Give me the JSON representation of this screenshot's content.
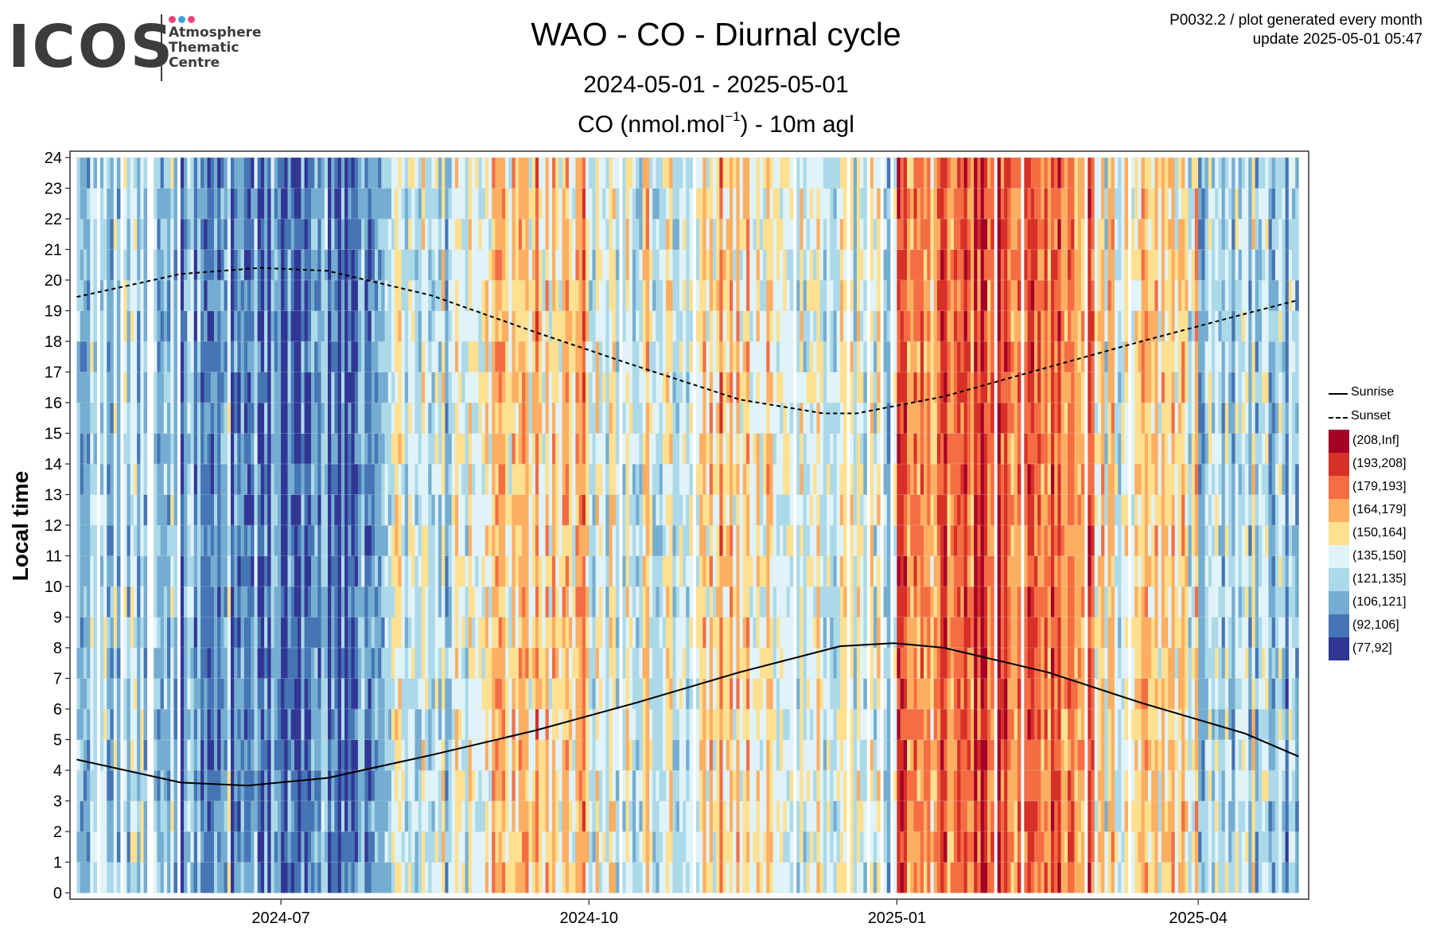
{
  "header": {
    "logo_text": "ICOS",
    "logo_subtitle": [
      "Atmosphere",
      "Thematic",
      "Centre"
    ],
    "logo_dot_colors": [
      "#e8457f",
      "#3aa2e3",
      "#e8457f"
    ],
    "title": "WAO - CO - Diurnal cycle",
    "subtitle": "2024-05-01 - 2025-05-01",
    "plot_subtitle_pre": "CO (nmol.mol",
    "plot_subtitle_exp": "−1",
    "plot_subtitle_post": ") - 10m agl",
    "meta_line1": "P0032.2 / plot generated every month",
    "meta_line2": "update  2025-05-01 05:47"
  },
  "chart_data": {
    "type": "heatmap",
    "ylabel": "Local time",
    "xlabel": "",
    "x_range": [
      "2024-05-01",
      "2025-05-01"
    ],
    "xlim": [
      "2024-04-29",
      "2025-05-04"
    ],
    "x_ticks": [
      {
        "date": "2024-07-01",
        "label": "2024-07"
      },
      {
        "date": "2024-10-01",
        "label": "2024-10"
      },
      {
        "date": "2025-01-01",
        "label": "2025-01"
      },
      {
        "date": "2025-04-01",
        "label": "2025-04"
      }
    ],
    "ylim": [
      0,
      24
    ],
    "y_ticks": [
      0,
      1,
      2,
      3,
      4,
      5,
      6,
      7,
      8,
      9,
      10,
      11,
      12,
      13,
      14,
      15,
      16,
      17,
      18,
      19,
      20,
      21,
      22,
      23,
      24
    ],
    "grid": true,
    "legend_position": "right",
    "classes": [
      {
        "label": "(208,Inf]",
        "color": "#a50026",
        "mid": 220
      },
      {
        "label": "(193,208]",
        "color": "#d73027",
        "mid": 200
      },
      {
        "label": "(179,193]",
        "color": "#f46d43",
        "mid": 186
      },
      {
        "label": "(164,179]",
        "color": "#fdae61",
        "mid": 171
      },
      {
        "label": "(150,164]",
        "color": "#fee090",
        "mid": 157
      },
      {
        "label": "(135,150]",
        "color": "#e0f3f8",
        "mid": 142
      },
      {
        "label": "(121,135]",
        "color": "#abd9e9",
        "mid": 128
      },
      {
        "label": "(106,121]",
        "color": "#74add1",
        "mid": 113
      },
      {
        "label": "(92,106]",
        "color": "#4575b4",
        "mid": 99
      },
      {
        "label": "(77,92]",
        "color": "#313695",
        "mid": 85
      }
    ],
    "daily_mean_class_index_by_month": [
      {
        "month": "2024-05",
        "class_index": 6
      },
      {
        "month": "2024-06",
        "class_index": 7
      },
      {
        "month": "2024-07",
        "class_index": 8
      },
      {
        "month": "2024-08",
        "class_index": 5
      },
      {
        "month": "2024-09",
        "class_index": 4
      },
      {
        "month": "2024-10",
        "class_index": 5
      },
      {
        "month": "2024-11",
        "class_index": 4
      },
      {
        "month": "2024-12",
        "class_index": 5
      },
      {
        "month": "2025-01",
        "class_index": 2
      },
      {
        "month": "2025-02",
        "class_index": 2
      },
      {
        "month": "2025-03",
        "class_index": 4
      },
      {
        "month": "2025-04",
        "class_index": 6
      }
    ],
    "lines": [
      {
        "name": "Sunrise",
        "style": "solid",
        "points": [
          [
            "2024-05-01",
            4.35
          ],
          [
            "2024-06-01",
            3.6
          ],
          [
            "2024-06-21",
            3.5
          ],
          [
            "2024-07-15",
            3.75
          ],
          [
            "2024-08-15",
            4.5
          ],
          [
            "2024-09-15",
            5.3
          ],
          [
            "2024-10-15",
            6.2
          ],
          [
            "2024-11-15",
            7.2
          ],
          [
            "2024-12-15",
            8.05
          ],
          [
            "2024-12-31",
            8.15
          ],
          [
            "2025-01-15",
            8.0
          ],
          [
            "2025-02-15",
            7.2
          ],
          [
            "2025-03-15",
            6.2
          ],
          [
            "2025-04-15",
            5.2
          ],
          [
            "2025-05-01",
            4.45
          ]
        ]
      },
      {
        "name": "Sunset",
        "style": "dashed",
        "points": [
          [
            "2024-05-01",
            19.45
          ],
          [
            "2024-06-01",
            20.2
          ],
          [
            "2024-06-25",
            20.4
          ],
          [
            "2024-07-15",
            20.3
          ],
          [
            "2024-08-15",
            19.5
          ],
          [
            "2024-09-15",
            18.3
          ],
          [
            "2024-10-15",
            17.2
          ],
          [
            "2024-11-15",
            16.1
          ],
          [
            "2024-12-10",
            15.65
          ],
          [
            "2024-12-20",
            15.65
          ],
          [
            "2025-01-15",
            16.2
          ],
          [
            "2025-02-15",
            17.15
          ],
          [
            "2025-03-15",
            18.0
          ],
          [
            "2025-04-15",
            18.9
          ],
          [
            "2025-05-01",
            19.35
          ]
        ]
      }
    ]
  }
}
